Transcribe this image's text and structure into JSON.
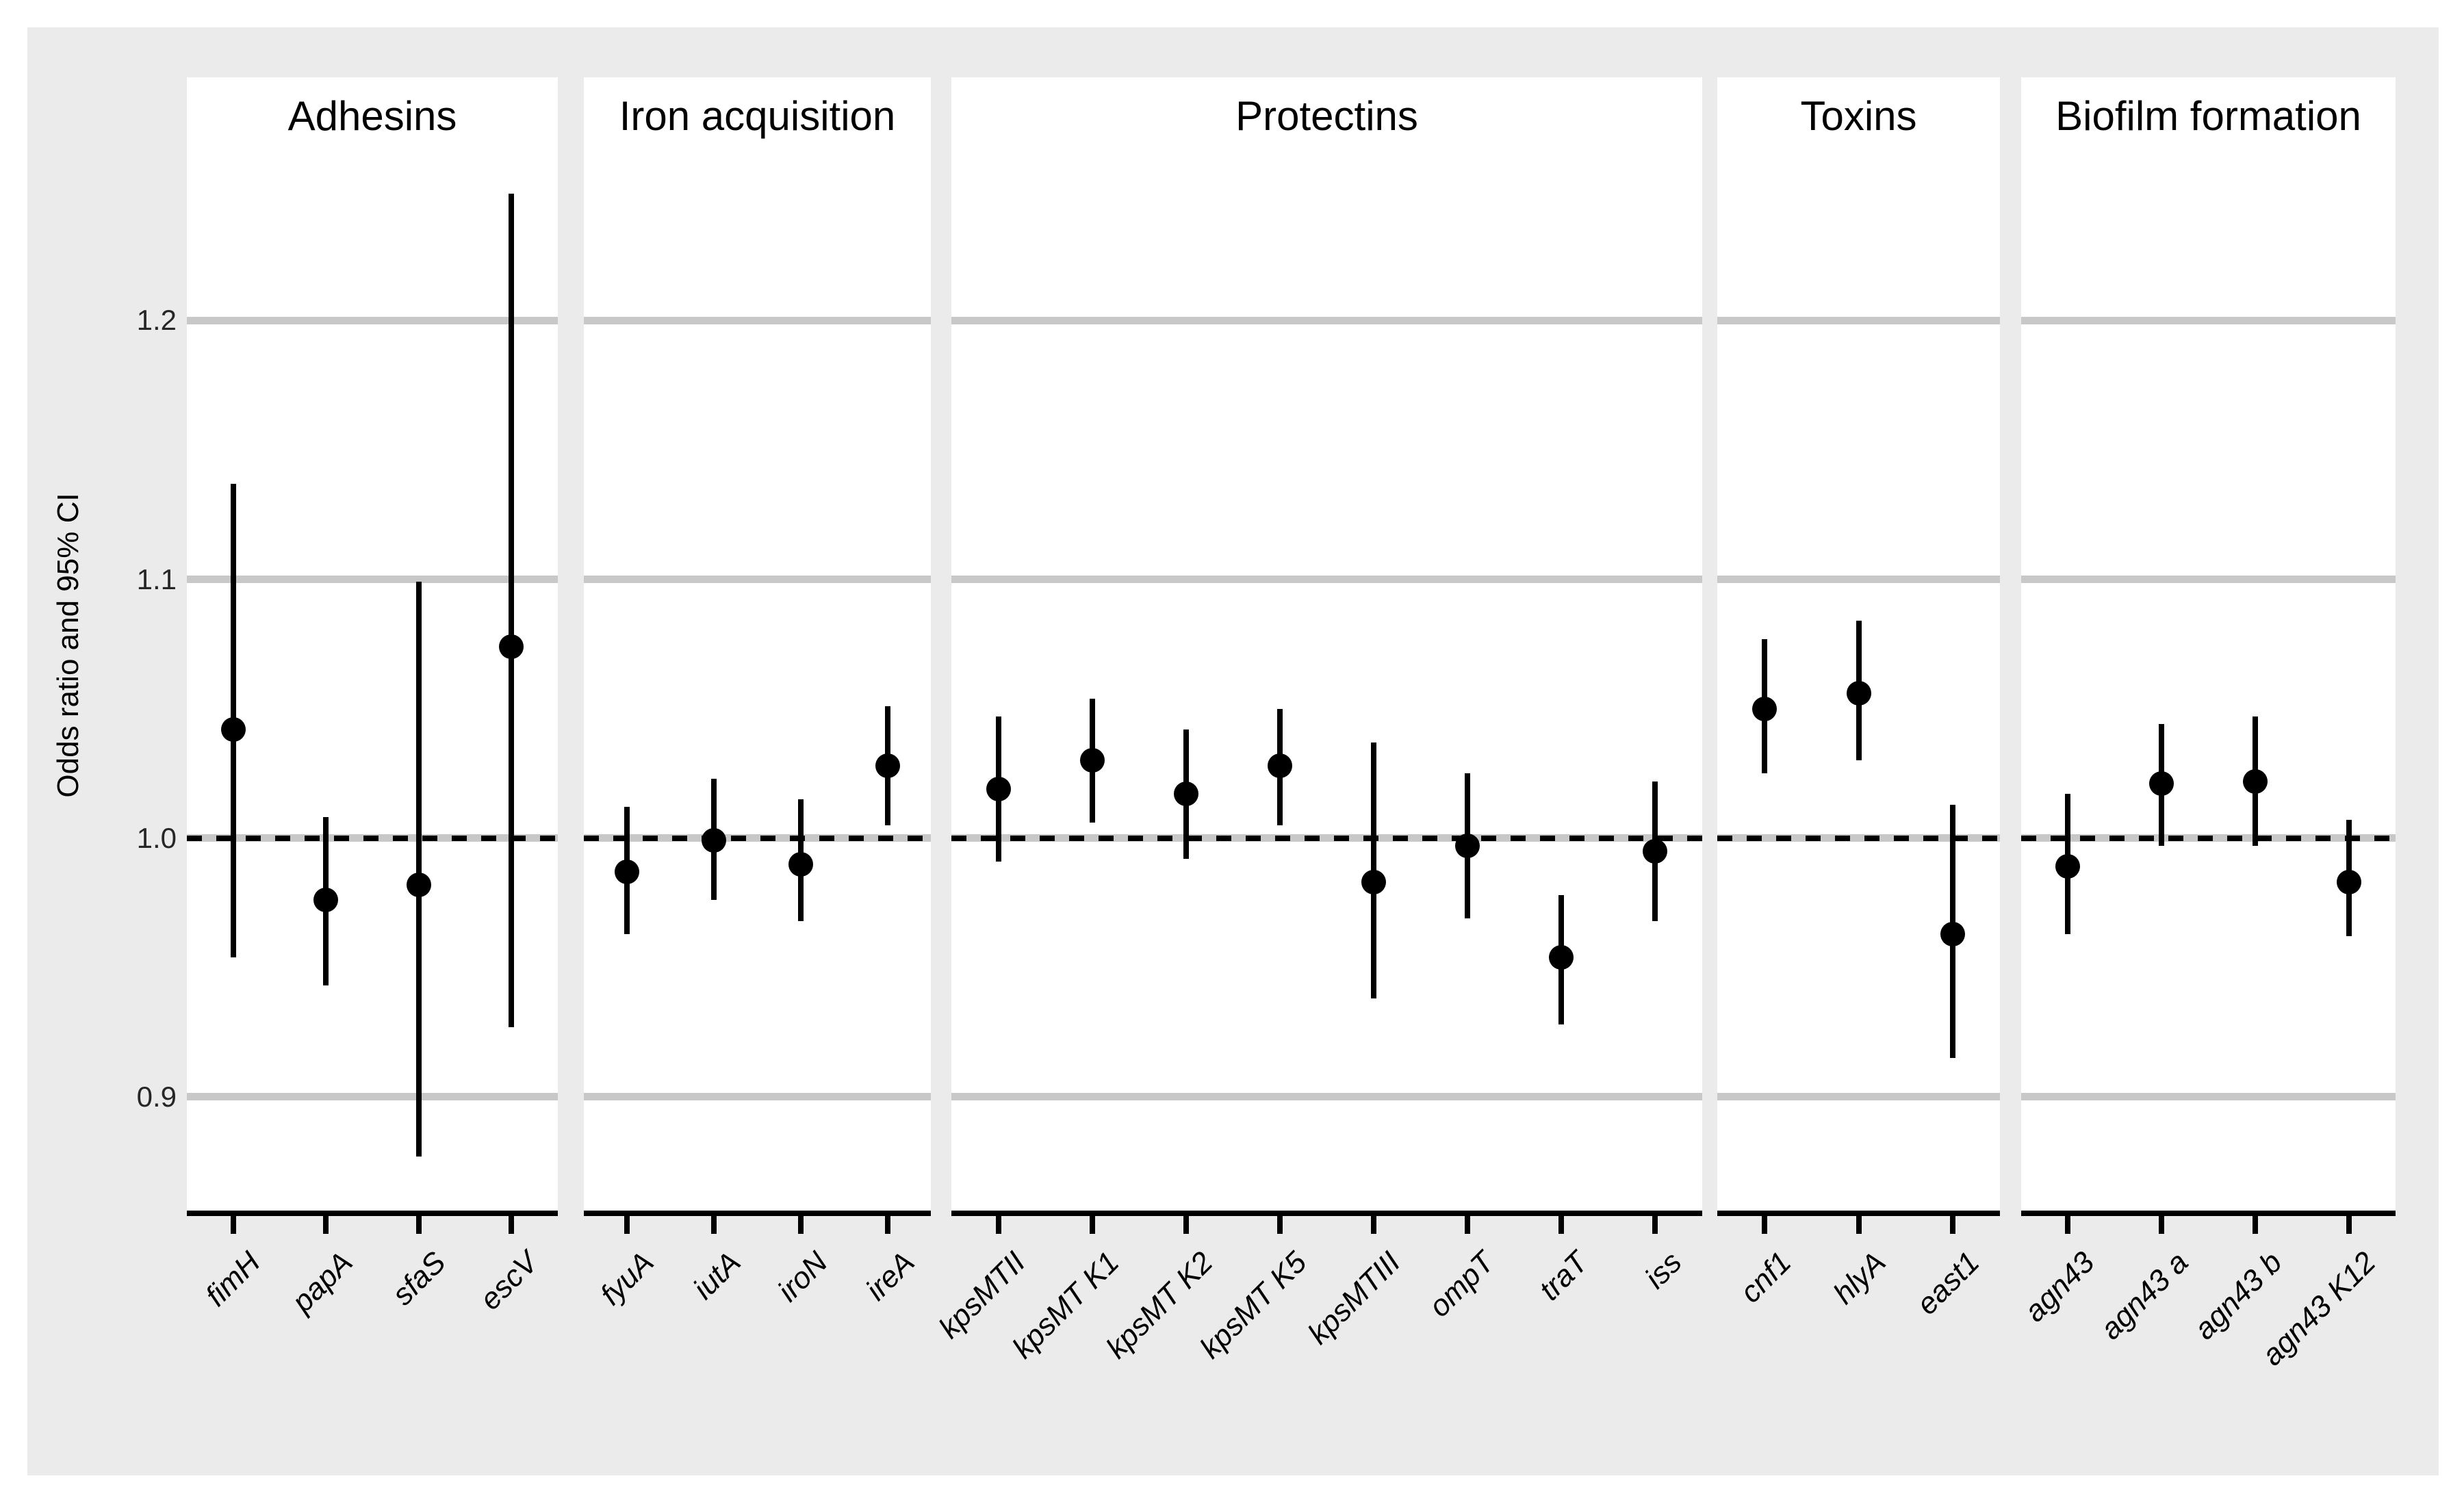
{
  "chart_data": {
    "type": "pointrange",
    "title": "",
    "xlabel": "",
    "ylabel": "Odds ratio and 95% CI",
    "ylim": [
      0.855,
      1.294
    ],
    "grid": "on",
    "legend": "none",
    "y_ticks": [
      {
        "value": 0.9,
        "label": "0.9"
      },
      {
        "value": 1.0,
        "label": "1.0"
      },
      {
        "value": 1.1,
        "label": "1.1"
      },
      {
        "value": 1.2,
        "label": "1.2"
      }
    ],
    "reference_line": {
      "value": 1.0,
      "style": "dashed",
      "color": "#000000"
    },
    "panels": [
      {
        "title": "Adhesins",
        "genes": [
          {
            "name": "fimH",
            "or": 1.042,
            "ci_low": 0.954,
            "ci_high": 1.137
          },
          {
            "name": "papA",
            "or": 0.976,
            "ci_low": 0.943,
            "ci_high": 1.008
          },
          {
            "name": "sfaS",
            "or": 0.982,
            "ci_low": 0.877,
            "ci_high": 1.099
          },
          {
            "name": "escV",
            "or": 1.074,
            "ci_low": 0.927,
            "ci_high": 1.249
          }
        ]
      },
      {
        "title": "Iron acquisition",
        "genes": [
          {
            "name": "fyuA",
            "or": 0.987,
            "ci_low": 0.963,
            "ci_high": 1.012
          },
          {
            "name": "iutA",
            "or": 0.999,
            "ci_low": 0.976,
            "ci_high": 1.023
          },
          {
            "name": "iroN",
            "or": 0.99,
            "ci_low": 0.968,
            "ci_high": 1.015
          },
          {
            "name": "ireA",
            "or": 1.028,
            "ci_low": 1.005,
            "ci_high": 1.051
          }
        ]
      },
      {
        "title": "Protectins",
        "genes": [
          {
            "name": "kpsMTII",
            "or": 1.019,
            "ci_low": 0.991,
            "ci_high": 1.047
          },
          {
            "name": "kpsMT K1",
            "or": 1.03,
            "ci_low": 1.006,
            "ci_high": 1.054
          },
          {
            "name": "kpsMT K2",
            "or": 1.017,
            "ci_low": 0.992,
            "ci_high": 1.042
          },
          {
            "name": "kpsMT K5",
            "or": 1.028,
            "ci_low": 1.005,
            "ci_high": 1.05
          },
          {
            "name": "kpsMTIII",
            "or": 0.983,
            "ci_low": 0.938,
            "ci_high": 1.037
          },
          {
            "name": "ompT",
            "or": 0.997,
            "ci_low": 0.969,
            "ci_high": 1.025
          },
          {
            "name": "traT",
            "or": 0.954,
            "ci_low": 0.928,
            "ci_high": 0.978
          },
          {
            "name": "iss",
            "or": 0.995,
            "ci_low": 0.968,
            "ci_high": 1.022
          }
        ]
      },
      {
        "title": "Toxins",
        "genes": [
          {
            "name": "cnf1",
            "or": 1.05,
            "ci_low": 1.025,
            "ci_high": 1.077
          },
          {
            "name": "hlyA",
            "or": 1.056,
            "ci_low": 1.03,
            "ci_high": 1.084
          },
          {
            "name": "east1",
            "or": 0.963,
            "ci_low": 0.915,
            "ci_high": 1.013
          }
        ]
      },
      {
        "title": "Biofilm formation",
        "genes": [
          {
            "name": "agn43",
            "or": 0.989,
            "ci_low": 0.963,
            "ci_high": 1.017
          },
          {
            "name": "agn43 a",
            "or": 1.021,
            "ci_low": 0.997,
            "ci_high": 1.044
          },
          {
            "name": "agn43 b",
            "or": 1.022,
            "ci_low": 0.997,
            "ci_high": 1.047
          },
          {
            "name": "agn43 K12",
            "or": 0.983,
            "ci_low": 0.962,
            "ci_high": 1.007
          }
        ]
      }
    ]
  },
  "colors": {
    "figure_background": "#EBEBEB",
    "panel_background": "#FFFFFF",
    "gridline": "#C8C8C8",
    "point": "#000000",
    "axis_text": "#262626",
    "text": "#000000"
  }
}
